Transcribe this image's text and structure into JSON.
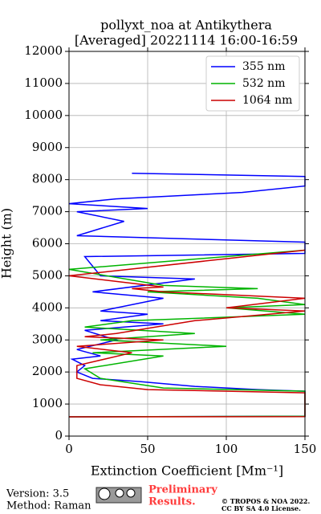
{
  "chart_data": {
    "type": "line",
    "title": "pollyxt_noa at Antikythera",
    "subtitle": "[Averaged] 20221114 16:00-16:59",
    "xlabel": "Extinction Coefficient [Mm⁻¹]",
    "ylabel": "Height (m)",
    "xlim": [
      0,
      150
    ],
    "xticks": [
      0,
      50,
      100,
      150
    ],
    "ylim": [
      0,
      12000
    ],
    "yticks": [
      0,
      1000,
      2000,
      3000,
      4000,
      5000,
      6000,
      7000,
      8000,
      9000,
      10000,
      11000,
      12000
    ],
    "grid": true,
    "legend": "upper right",
    "series": [
      {
        "name": "355 nm",
        "color": "#0000ff",
        "x": [
          0,
          150,
          150,
          120,
          80,
          45,
          15,
          5,
          10,
          2,
          20,
          5,
          30,
          10,
          60,
          20,
          50,
          20,
          60,
          15,
          80,
          20,
          10,
          150,
          150,
          5,
          35,
          5,
          50,
          0,
          30,
          110,
          150,
          150,
          40
        ],
        "y": [
          600,
          620,
          1400,
          1450,
          1550,
          1700,
          1800,
          2000,
          2200,
          2400,
          2500,
          2700,
          3000,
          3300,
          3500,
          3600,
          3800,
          3900,
          4300,
          4500,
          4900,
          5000,
          5600,
          5700,
          6050,
          6250,
          6700,
          7000,
          7100,
          7250,
          7400,
          7600,
          7800,
          8100,
          8200
        ]
      },
      {
        "name": "532 nm",
        "color": "#00b400",
        "x": [
          0,
          150,
          150,
          60,
          20,
          10,
          60,
          15,
          100,
          20,
          80,
          10,
          40,
          150,
          100,
          150,
          120,
          50,
          120,
          60,
          0,
          150
        ],
        "y": [
          600,
          620,
          1400,
          1500,
          1800,
          2100,
          2500,
          2600,
          2800,
          3000,
          3200,
          3400,
          3600,
          3800,
          4000,
          4100,
          4300,
          4500,
          4600,
          4700,
          5200,
          5800
        ]
      },
      {
        "name": "1064 nm",
        "color": "#cc0000",
        "x": [
          0,
          150,
          150,
          50,
          20,
          5,
          5,
          40,
          5,
          60,
          10,
          30,
          80,
          150,
          100,
          150,
          60,
          40,
          60,
          0,
          150
        ],
        "y": [
          600,
          610,
          1350,
          1450,
          1600,
          1800,
          2200,
          2600,
          2800,
          3000,
          3100,
          3200,
          3600,
          3900,
          4000,
          4300,
          4500,
          4600,
          4650,
          5000,
          5800
        ]
      }
    ]
  },
  "footer": {
    "version": "Version: 3.5",
    "method": "Method: Raman",
    "preliminary": "Preliminary",
    "results": "Results.",
    "copyright": "© TROPOS & NOA 2022.",
    "license": "CC BY SA 4.0 License."
  }
}
